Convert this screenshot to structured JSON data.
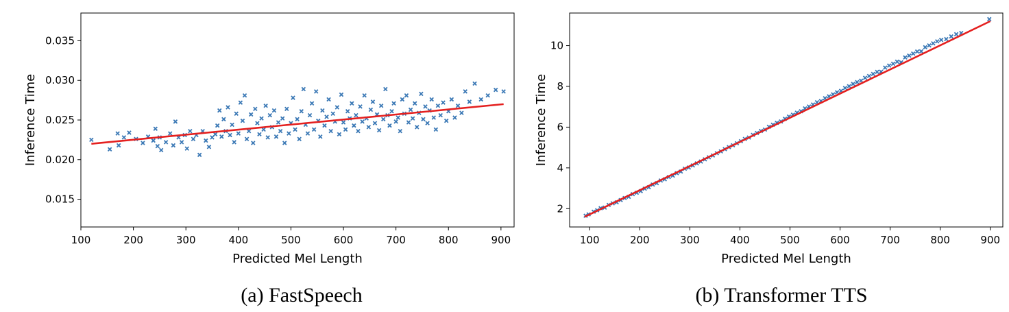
{
  "colors": {
    "points": "#3a78b5",
    "fit": "#e4201f",
    "axes": "#000000"
  },
  "captions": {
    "a": "(a) FastSpeech",
    "b": "(b) Transformer TTS"
  },
  "chart_data": [
    {
      "type": "scatter",
      "title": "",
      "xlabel": "Predicted Mel Length",
      "ylabel": "Inference Time",
      "xlim": [
        100,
        925
      ],
      "ylim": [
        0.0115,
        0.0385
      ],
      "xticks": [
        100,
        200,
        300,
        400,
        500,
        600,
        700,
        800,
        900
      ],
      "yticks": [
        0.015,
        0.02,
        0.025,
        0.03,
        0.035
      ],
      "ytick_labels": [
        "0.015",
        "0.020",
        "0.025",
        "0.030",
        "0.035"
      ],
      "marker": "x",
      "fit_line": {
        "x": [
          120,
          905
        ],
        "y": [
          0.022,
          0.027
        ]
      },
      "points": [
        [
          120,
          0.0225
        ],
        [
          155,
          0.0213
        ],
        [
          170,
          0.0233
        ],
        [
          172,
          0.0218
        ],
        [
          182,
          0.0228
        ],
        [
          192,
          0.0234
        ],
        [
          205,
          0.0226
        ],
        [
          218,
          0.0221
        ],
        [
          228,
          0.0229
        ],
        [
          238,
          0.0224
        ],
        [
          242,
          0.0239
        ],
        [
          246,
          0.0217
        ],
        [
          250,
          0.0228
        ],
        [
          253,
          0.0212
        ],
        [
          262,
          0.0222
        ],
        [
          270,
          0.0233
        ],
        [
          276,
          0.0218
        ],
        [
          280,
          0.0248
        ],
        [
          286,
          0.0228
        ],
        [
          292,
          0.0222
        ],
        [
          298,
          0.0231
        ],
        [
          302,
          0.0214
        ],
        [
          308,
          0.0236
        ],
        [
          314,
          0.0226
        ],
        [
          320,
          0.0231
        ],
        [
          326,
          0.0206
        ],
        [
          332,
          0.0236
        ],
        [
          338,
          0.0224
        ],
        [
          344,
          0.0216
        ],
        [
          350,
          0.0228
        ],
        [
          356,
          0.0232
        ],
        [
          360,
          0.0243
        ],
        [
          364,
          0.0262
        ],
        [
          368,
          0.0229
        ],
        [
          372,
          0.0251
        ],
        [
          376,
          0.0236
        ],
        [
          380,
          0.0266
        ],
        [
          384,
          0.0231
        ],
        [
          388,
          0.0244
        ],
        [
          392,
          0.0222
        ],
        [
          396,
          0.0258
        ],
        [
          400,
          0.0233
        ],
        [
          404,
          0.0272
        ],
        [
          408,
          0.0249
        ],
        [
          412,
          0.0281
        ],
        [
          416,
          0.0226
        ],
        [
          420,
          0.0236
        ],
        [
          424,
          0.0257
        ],
        [
          428,
          0.0221
        ],
        [
          432,
          0.0264
        ],
        [
          436,
          0.0246
        ],
        [
          440,
          0.0232
        ],
        [
          444,
          0.0252
        ],
        [
          448,
          0.0238
        ],
        [
          452,
          0.0268
        ],
        [
          456,
          0.0228
        ],
        [
          460,
          0.0256
        ],
        [
          464,
          0.0241
        ],
        [
          468,
          0.0262
        ],
        [
          472,
          0.0229
        ],
        [
          476,
          0.0247
        ],
        [
          480,
          0.0236
        ],
        [
          484,
          0.0252
        ],
        [
          488,
          0.0221
        ],
        [
          492,
          0.0264
        ],
        [
          496,
          0.0233
        ],
        [
          500,
          0.0246
        ],
        [
          504,
          0.0278
        ],
        [
          508,
          0.0238
        ],
        [
          512,
          0.0251
        ],
        [
          516,
          0.0226
        ],
        [
          520,
          0.0261
        ],
        [
          524,
          0.0289
        ],
        [
          528,
          0.0244
        ],
        [
          532,
          0.0233
        ],
        [
          536,
          0.0256
        ],
        [
          540,
          0.0271
        ],
        [
          544,
          0.0238
        ],
        [
          548,
          0.0286
        ],
        [
          552,
          0.0249
        ],
        [
          556,
          0.0229
        ],
        [
          560,
          0.0262
        ],
        [
          564,
          0.0243
        ],
        [
          568,
          0.0254
        ],
        [
          572,
          0.0276
        ],
        [
          576,
          0.0236
        ],
        [
          580,
          0.0258
        ],
        [
          584,
          0.0248
        ],
        [
          588,
          0.0266
        ],
        [
          592,
          0.0232
        ],
        [
          596,
          0.0282
        ],
        [
          600,
          0.0247
        ],
        [
          604,
          0.0238
        ],
        [
          608,
          0.0261
        ],
        [
          612,
          0.0252
        ],
        [
          616,
          0.0271
        ],
        [
          620,
          0.0243
        ],
        [
          624,
          0.0256
        ],
        [
          628,
          0.0236
        ],
        [
          632,
          0.0267
        ],
        [
          636,
          0.0248
        ],
        [
          640,
          0.0281
        ],
        [
          644,
          0.0252
        ],
        [
          648,
          0.0241
        ],
        [
          652,
          0.0263
        ],
        [
          656,
          0.0273
        ],
        [
          660,
          0.0246
        ],
        [
          664,
          0.0257
        ],
        [
          668,
          0.0237
        ],
        [
          672,
          0.0268
        ],
        [
          676,
          0.0251
        ],
        [
          680,
          0.0289
        ],
        [
          684,
          0.0256
        ],
        [
          688,
          0.0243
        ],
        [
          692,
          0.0261
        ],
        [
          696,
          0.0271
        ],
        [
          700,
          0.0248
        ],
        [
          704,
          0.0253
        ],
        [
          708,
          0.0236
        ],
        [
          712,
          0.0276
        ],
        [
          716,
          0.0258
        ],
        [
          720,
          0.0281
        ],
        [
          724,
          0.0247
        ],
        [
          728,
          0.0263
        ],
        [
          732,
          0.0252
        ],
        [
          736,
          0.0271
        ],
        [
          740,
          0.0241
        ],
        [
          744,
          0.0259
        ],
        [
          748,
          0.0283
        ],
        [
          752,
          0.0251
        ],
        [
          756,
          0.0267
        ],
        [
          760,
          0.0246
        ],
        [
          764,
          0.0262
        ],
        [
          768,
          0.0276
        ],
        [
          772,
          0.0253
        ],
        [
          776,
          0.0238
        ],
        [
          780,
          0.0268
        ],
        [
          785,
          0.0256
        ],
        [
          790,
          0.0272
        ],
        [
          796,
          0.0249
        ],
        [
          800,
          0.0261
        ],
        [
          806,
          0.0276
        ],
        [
          812,
          0.0253
        ],
        [
          818,
          0.0268
        ],
        [
          825,
          0.0259
        ],
        [
          832,
          0.0286
        ],
        [
          840,
          0.0273
        ],
        [
          850,
          0.0296
        ],
        [
          862,
          0.0276
        ],
        [
          875,
          0.0281
        ],
        [
          890,
          0.0288
        ],
        [
          905,
          0.0286
        ]
      ]
    },
    {
      "type": "scatter",
      "title": "",
      "xlabel": "Predicted Mel Length",
      "ylabel": "Inference Time",
      "xlim": [
        60,
        925
      ],
      "ylim": [
        1.1,
        11.6
      ],
      "xticks": [
        100,
        200,
        300,
        400,
        500,
        600,
        700,
        800,
        900
      ],
      "yticks": [
        2,
        4,
        6,
        8,
        10
      ],
      "ytick_labels": [
        "2",
        "4",
        "6",
        "8",
        "10"
      ],
      "marker": "x",
      "fit_line": {
        "x": [
          90,
          900
        ],
        "y": [
          1.6,
          11.2
        ]
      },
      "points": [
        [
          92,
          1.65
        ],
        [
          98,
          1.72
        ],
        [
          108,
          1.85
        ],
        [
          115,
          1.92
        ],
        [
          122,
          2.02
        ],
        [
          130,
          2.05
        ],
        [
          138,
          2.18
        ],
        [
          146,
          2.26
        ],
        [
          154,
          2.31
        ],
        [
          162,
          2.42
        ],
        [
          170,
          2.52
        ],
        [
          178,
          2.58
        ],
        [
          186,
          2.71
        ],
        [
          194,
          2.78
        ],
        [
          202,
          2.86
        ],
        [
          210,
          2.98
        ],
        [
          218,
          3.05
        ],
        [
          226,
          3.18
        ],
        [
          234,
          3.25
        ],
        [
          242,
          3.38
        ],
        [
          250,
          3.44
        ],
        [
          258,
          3.55
        ],
        [
          266,
          3.62
        ],
        [
          274,
          3.74
        ],
        [
          282,
          3.82
        ],
        [
          290,
          3.96
        ],
        [
          298,
          4.02
        ],
        [
          306,
          4.12
        ],
        [
          314,
          4.22
        ],
        [
          322,
          4.31
        ],
        [
          330,
          4.42
        ],
        [
          338,
          4.52
        ],
        [
          346,
          4.61
        ],
        [
          354,
          4.72
        ],
        [
          362,
          4.81
        ],
        [
          370,
          4.92
        ],
        [
          378,
          5.02
        ],
        [
          386,
          5.11
        ],
        [
          394,
          5.21
        ],
        [
          402,
          5.31
        ],
        [
          410,
          5.42
        ],
        [
          418,
          5.49
        ],
        [
          426,
          5.62
        ],
        [
          434,
          5.71
        ],
        [
          442,
          5.81
        ],
        [
          450,
          5.88
        ],
        [
          458,
          6.02
        ],
        [
          466,
          6.12
        ],
        [
          474,
          6.21
        ],
        [
          482,
          6.28
        ],
        [
          490,
          6.41
        ],
        [
          498,
          6.52
        ],
        [
          506,
          6.61
        ],
        [
          514,
          6.71
        ],
        [
          522,
          6.78
        ],
        [
          530,
          6.92
        ],
        [
          538,
          7.01
        ],
        [
          546,
          7.11
        ],
        [
          554,
          7.22
        ],
        [
          562,
          7.28
        ],
        [
          570,
          7.42
        ],
        [
          578,
          7.51
        ],
        [
          586,
          7.61
        ],
        [
          594,
          7.71
        ],
        [
          602,
          7.78
        ],
        [
          610,
          7.92
        ],
        [
          618,
          8.01
        ],
        [
          626,
          8.12
        ],
        [
          634,
          8.21
        ],
        [
          642,
          8.28
        ],
        [
          650,
          8.42
        ],
        [
          658,
          8.51
        ],
        [
          666,
          8.61
        ],
        [
          674,
          8.71
        ],
        [
          682,
          8.72
        ],
        [
          690,
          8.92
        ],
        [
          698,
          9.02
        ],
        [
          706,
          9.11
        ],
        [
          714,
          9.21
        ],
        [
          722,
          9.18
        ],
        [
          730,
          9.42
        ],
        [
          738,
          9.51
        ],
        [
          746,
          9.61
        ],
        [
          754,
          9.71
        ],
        [
          762,
          9.72
        ],
        [
          770,
          9.92
        ],
        [
          778,
          10.01
        ],
        [
          786,
          10.11
        ],
        [
          794,
          10.21
        ],
        [
          802,
          10.28
        ],
        [
          812,
          10.32
        ],
        [
          822,
          10.45
        ],
        [
          832,
          10.56
        ],
        [
          842,
          10.62
        ],
        [
          898,
          11.3
        ]
      ]
    }
  ]
}
